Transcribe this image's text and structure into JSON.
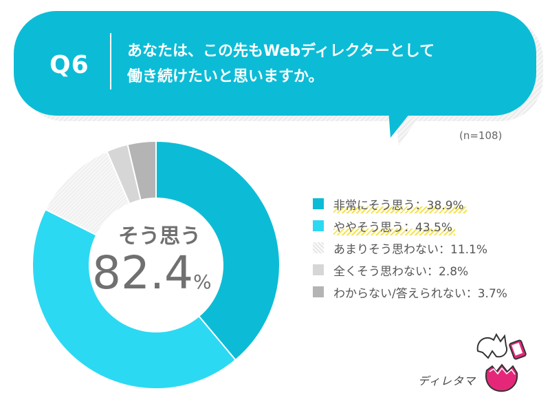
{
  "question": {
    "label": "Q6",
    "text_line1": "あなたは、この先もWebディレクターとして",
    "text_line2": "働き続けたいと思いますか。"
  },
  "sample_size": "(n=108)",
  "center": {
    "label": "そう思う",
    "value": "82.4",
    "unit": "%"
  },
  "brand": {
    "name": "ディレタマ"
  },
  "colors": {
    "bubble": "#0cbcd6",
    "very_agree": "#0cbcd6",
    "somewhat_agree": "#2cd9f2",
    "not_really": "#efefef",
    "not_at_all": "#d6d6d6",
    "dont_know": "#b4b4b4",
    "highlight": "#f4e24a"
  },
  "chart_data": {
    "type": "pie",
    "title": "",
    "series": [
      {
        "name": "非常にそう思う",
        "value": 38.9,
        "label": "非常にそう思う：38.9%",
        "color": "#0cbcd6"
      },
      {
        "name": "ややそう思う",
        "value": 43.5,
        "label": "ややそう思う：43.5%",
        "color": "#2cd9f2"
      },
      {
        "name": "あまりそう思わない",
        "value": 11.1,
        "label": "あまりそう思わない：11.1%",
        "color": "#efefef"
      },
      {
        "name": "全くそう思わない",
        "value": 2.8,
        "label": "全くそう思わない：2.8%",
        "color": "#d6d6d6"
      },
      {
        "name": "わからない/答えられない",
        "value": 3.7,
        "label": "わからない/答えられない：3.7%",
        "color": "#b4b4b4"
      }
    ],
    "legend_position": "right",
    "highlighted_items": [
      "非常にそう思う",
      "ややそう思う"
    ]
  }
}
